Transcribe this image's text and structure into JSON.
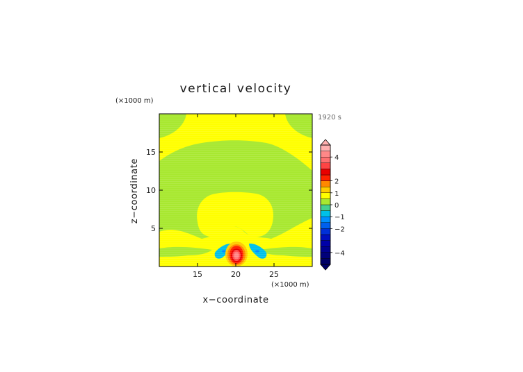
{
  "chart_data": {
    "type": "heatmap",
    "title": "vertical velocity",
    "time_label": "1920 s",
    "xlabel": "x−coordinate",
    "ylabel": "z−coordinate",
    "x_unit": "(×1000 m)",
    "y_unit": "(×1000 m)",
    "xlim": [
      10,
      30
    ],
    "ylim": [
      0,
      20
    ],
    "x_ticks": [
      {
        "value": 15,
        "label": "15"
      },
      {
        "value": 20,
        "label": "20"
      },
      {
        "value": 25,
        "label": "25"
      }
    ],
    "y_ticks": [
      {
        "value": 5,
        "label": "5"
      },
      {
        "value": 10,
        "label": "10"
      },
      {
        "value": 15,
        "label": "15"
      }
    ],
    "colorbar": {
      "min": -5,
      "max": 5,
      "levels": [
        {
          "from": -5.0,
          "to": -4.5,
          "color": "#000066"
        },
        {
          "from": -4.5,
          "to": -4.0,
          "color": "#00007a"
        },
        {
          "from": -4.0,
          "to": -3.5,
          "color": "#000090"
        },
        {
          "from": -3.5,
          "to": -3.0,
          "color": "#0000a8"
        },
        {
          "from": -3.0,
          "to": -2.5,
          "color": "#0010bf"
        },
        {
          "from": -2.5,
          "to": -2.0,
          "color": "#0030d8"
        },
        {
          "from": -2.0,
          "to": -1.5,
          "color": "#0060ee"
        },
        {
          "from": -1.5,
          "to": -1.0,
          "color": "#0090ff"
        },
        {
          "from": -1.0,
          "to": -0.5,
          "color": "#00c0e8"
        },
        {
          "from": -0.5,
          "to": 0.0,
          "color": "#44d090"
        },
        {
          "from": 0.0,
          "to": 0.5,
          "color": "#a8e830"
        },
        {
          "from": 0.5,
          "to": 1.0,
          "color": "#ffff00"
        },
        {
          "from": 1.0,
          "to": 1.5,
          "color": "#ffcc00"
        },
        {
          "from": 1.5,
          "to": 2.0,
          "color": "#ff8800"
        },
        {
          "from": 2.0,
          "to": 2.5,
          "color": "#ff2200"
        },
        {
          "from": 2.5,
          "to": 3.0,
          "color": "#e80000"
        },
        {
          "from": 3.0,
          "to": 3.5,
          "color": "#ff4444"
        },
        {
          "from": 3.5,
          "to": 4.0,
          "color": "#ff7070"
        },
        {
          "from": 4.0,
          "to": 4.5,
          "color": "#ff8888"
        },
        {
          "from": 4.5,
          "to": 5.0,
          "color": "#ffb0b0"
        }
      ],
      "ticks": [
        {
          "value": 4,
          "label": "4"
        },
        {
          "value": 2,
          "label": "2"
        },
        {
          "value": 1,
          "label": "1"
        },
        {
          "value": 0,
          "label": "0"
        },
        {
          "value": -1,
          "label": "−1"
        },
        {
          "value": -2,
          "label": "−2"
        },
        {
          "value": -4,
          "label": "−4"
        }
      ]
    }
  }
}
